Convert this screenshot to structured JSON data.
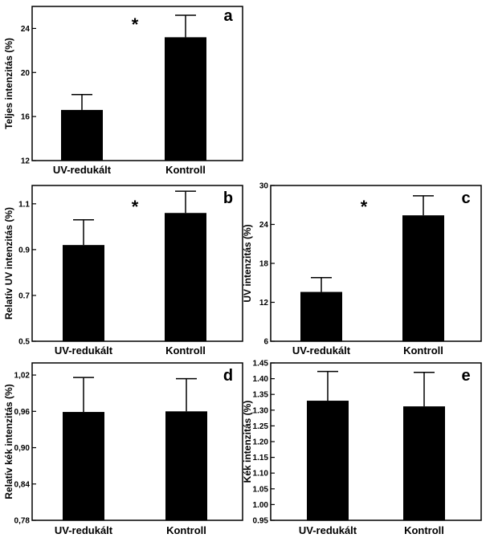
{
  "chart_data": [
    {
      "type": "bar",
      "panel_label": "a",
      "categories": [
        "UV-redukált",
        "Kontroll"
      ],
      "values": [
        16.6,
        23.2
      ],
      "errors": [
        1.4,
        2.0
      ],
      "ylabel": "Teljes intenzitás  (%)",
      "ylim": [
        12,
        26
      ],
      "yticks": [
        12,
        16,
        20,
        24
      ],
      "ytick_labels": [
        "12",
        "16",
        "20",
        "24"
      ],
      "annotation": "*"
    },
    {
      "type": "bar",
      "panel_label": "b",
      "categories": [
        "UV-redukált",
        "Kontroll"
      ],
      "values": [
        0.92,
        1.06
      ],
      "errors": [
        0.11,
        0.095
      ],
      "ylabel": "Relatív UV intenzitás  (%)",
      "ylim": [
        0.5,
        1.18
      ],
      "yticks": [
        0.5,
        0.7,
        0.9,
        1.1
      ],
      "ytick_labels": [
        "0.5",
        "0.7",
        "0.9",
        "1.1"
      ],
      "annotation": "*"
    },
    {
      "type": "bar",
      "panel_label": "c",
      "categories": [
        "UV-redukált",
        "Kontroll"
      ],
      "values": [
        13.6,
        25.4
      ],
      "errors": [
        2.2,
        3.0
      ],
      "ylabel": "UV intenzitás  (%)",
      "ylim": [
        6,
        30
      ],
      "yticks": [
        6,
        12,
        18,
        24,
        30
      ],
      "ytick_labels": [
        "6",
        "12",
        "18",
        "24",
        "30"
      ],
      "annotation": "*"
    },
    {
      "type": "bar",
      "panel_label": "d",
      "categories": [
        "UV-redukált",
        "Kontroll"
      ],
      "values": [
        0.959,
        0.96
      ],
      "errors": [
        0.057,
        0.054
      ],
      "ylabel": "Relatív kék intenzitás  (%)",
      "ylim": [
        0.78,
        1.04
      ],
      "yticks": [
        0.78,
        0.84,
        0.9,
        0.96,
        1.02
      ],
      "ytick_labels": [
        "0,78",
        "0,84",
        "0,90",
        "0,96",
        "1,02"
      ],
      "annotation": ""
    },
    {
      "type": "bar",
      "panel_label": "e",
      "categories": [
        "UV-redukált",
        "Kontroll"
      ],
      "values": [
        1.33,
        1.312
      ],
      "errors": [
        0.093,
        0.108
      ],
      "ylabel": "Kék intenzitás  (%)",
      "ylim": [
        0.95,
        1.45
      ],
      "yticks": [
        0.95,
        1.0,
        1.05,
        1.1,
        1.15,
        1.2,
        1.25,
        1.3,
        1.35,
        1.4,
        1.45
      ],
      "ytick_labels": [
        "0.95",
        "1.00",
        "1.05",
        "1.10",
        "1.15",
        "1.20",
        "1.25",
        "1.30",
        "1.35",
        "1.40",
        "1.45"
      ],
      "annotation": ""
    }
  ]
}
